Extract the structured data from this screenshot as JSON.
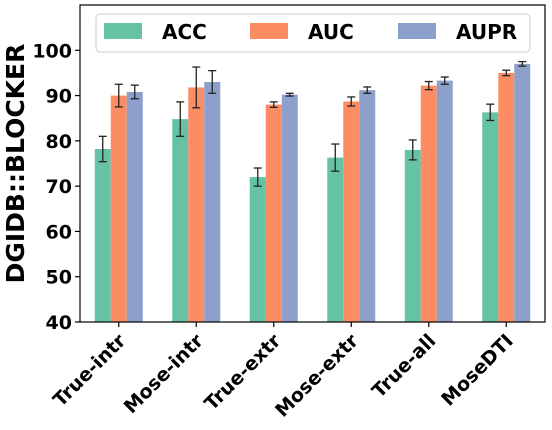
{
  "chart_data": {
    "type": "bar",
    "title": "",
    "xlabel": "",
    "ylabel": "DGIDB::BLOCKER",
    "ylim": [
      40,
      110
    ],
    "yticks": [
      40,
      50,
      60,
      70,
      80,
      90,
      100
    ],
    "grid": false,
    "legend_position": "top",
    "categories": [
      "True-intr",
      "Mose-intr",
      "True-extr",
      "Mose-extr",
      "True-all",
      "MoseDTI"
    ],
    "series": [
      {
        "name": "ACC",
        "color": "#66c2a5",
        "values": [
          78.2,
          84.8,
          72.0,
          76.3,
          78.0,
          86.3
        ],
        "errors": [
          2.8,
          3.8,
          2.0,
          3.0,
          2.2,
          1.8
        ]
      },
      {
        "name": "AUC",
        "color": "#fc8d62",
        "values": [
          90.0,
          91.8,
          88.0,
          88.7,
          92.2,
          95.0
        ],
        "errors": [
          2.5,
          4.5,
          0.6,
          1.0,
          0.9,
          0.6
        ]
      },
      {
        "name": "AUPR",
        "color": "#8da0cb",
        "values": [
          90.8,
          93.0,
          90.2,
          91.2,
          93.3,
          97.0
        ],
        "errors": [
          1.5,
          2.5,
          0.3,
          0.7,
          0.8,
          0.5
        ]
      }
    ]
  }
}
